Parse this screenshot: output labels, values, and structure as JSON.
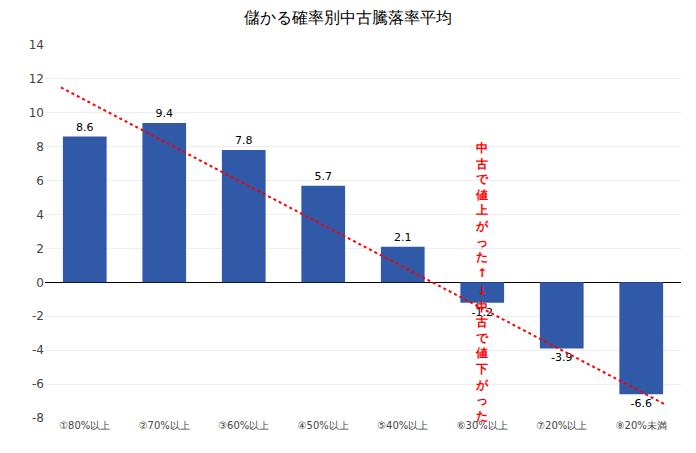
{
  "chart_data": {
    "type": "bar",
    "title": "儲かる確率別中古騰落率平均",
    "categories": [
      "①80%以上",
      "②70%以上",
      "③60%以上",
      "④50%以上",
      "⑤40%以上",
      "⑥30%以上",
      "⑦20%以上",
      "⑧20%未満"
    ],
    "series": [
      {
        "type": "bar",
        "color": "#3059A8",
        "values": [
          8.6,
          9.4,
          7.8,
          5.7,
          2.1,
          -1.2,
          -3.9,
          -6.6
        ]
      },
      {
        "type": "line",
        "color": "#FF0000",
        "line_style": "dotted",
        "x": [
          -0.3,
          7.3
        ],
        "values": [
          11.5,
          -7.2
        ]
      }
    ],
    "ylim": [
      -8,
      14
    ],
    "yticks": [
      -8,
      -6,
      -4,
      -2,
      0,
      2,
      4,
      6,
      8,
      10,
      12,
      14
    ],
    "grid": true,
    "data_labels": true,
    "annotations": [
      {
        "text": "中古で値上がった↑",
        "color": "#FF0000"
      },
      {
        "text": "↓中古で値下がった",
        "color": "#FF0000"
      }
    ]
  }
}
